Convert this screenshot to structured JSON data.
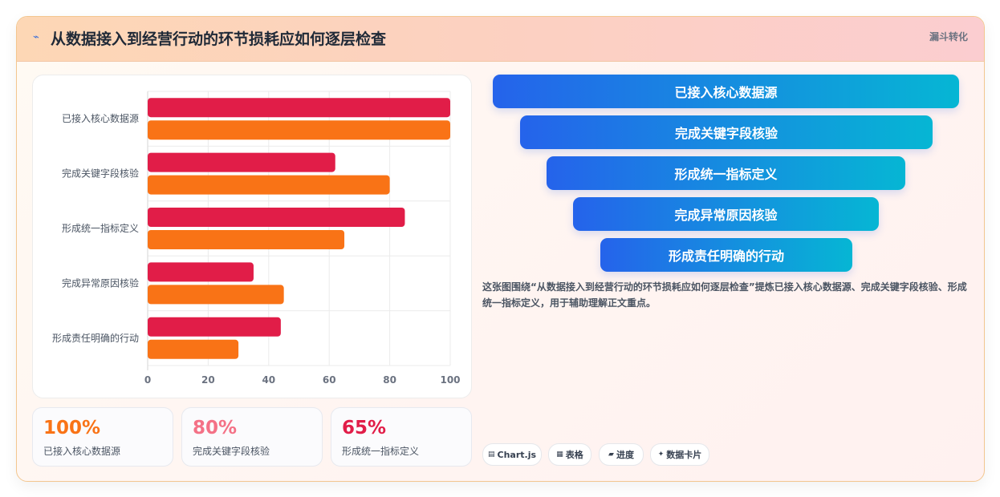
{
  "header": {
    "icon": "trend-line-icon",
    "title": "从数据接入到经营行动的环节损耗应如何逐层检查",
    "tag": "漏斗转化"
  },
  "chart_data": {
    "type": "bar",
    "orientation": "horizontal",
    "categories": [
      "已接入核心数据源",
      "完成关键字段核验",
      "形成统一指标定义",
      "完成异常原因核验",
      "形成责任明确的行动"
    ],
    "series": [
      {
        "color": "#e11d48",
        "values": [
          100,
          62,
          85,
          35,
          44
        ]
      },
      {
        "color": "#f97316",
        "values": [
          100,
          80,
          65,
          45,
          30
        ]
      }
    ],
    "xlim": [
      0,
      100
    ],
    "xticks": [
      0,
      20,
      40,
      60,
      80,
      100
    ],
    "grid": true
  },
  "stats": [
    {
      "value": "100%",
      "label": "已接入核心数据源",
      "color": "#f97316"
    },
    {
      "value": "80%",
      "label": "完成关键字段核验",
      "color": "#f47186"
    },
    {
      "value": "65%",
      "label": "形成统一指标定义",
      "color": "#e11d48"
    }
  ],
  "funnel": {
    "steps": [
      "已接入核心数据源",
      "完成关键字段核验",
      "形成统一指标定义",
      "完成异常原因核验",
      "形成责任明确的行动"
    ],
    "gradient_from": "#2563eb",
    "gradient_to": "#06b6d4"
  },
  "description": "这张图围绕“从数据接入到经营行动的环节损耗应如何逐层检查”提炼已接入核心数据源、完成关键字段核验、形成统一指标定义，用于辅助理解正文重点。",
  "chips": [
    {
      "icon": "chart-icon",
      "label": "Chart.js"
    },
    {
      "icon": "table-icon",
      "label": "表格"
    },
    {
      "icon": "progress-icon",
      "label": "进度"
    },
    {
      "icon": "sparkle-icon",
      "label": "数据卡片"
    }
  ]
}
